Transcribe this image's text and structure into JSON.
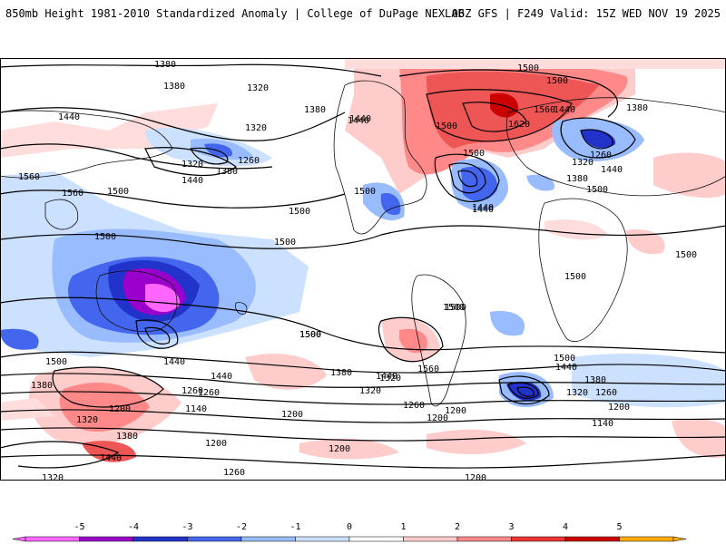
{
  "header": {
    "title_left": "850mb Height 1981-2010 Standardized Anomaly | College of DuPage NEXLAB",
    "title_right": "06Z GFS | F249 Valid: 15Z WED NOV 19 2025"
  },
  "contour_labels": [
    {
      "id": "c1",
      "text": "1380"
    },
    {
      "id": "c2",
      "text": "1380"
    },
    {
      "id": "c3",
      "text": "1320"
    },
    {
      "id": "c4",
      "text": "1440"
    },
    {
      "id": "c5",
      "text": "1320"
    },
    {
      "id": "c6",
      "text": "1380"
    },
    {
      "id": "c7",
      "text": "1440"
    },
    {
      "id": "c8",
      "text": "1260"
    },
    {
      "id": "c9",
      "text": "1320"
    },
    {
      "id": "c10",
      "text": "1380"
    },
    {
      "id": "c11",
      "text": "1440"
    },
    {
      "id": "c12",
      "text": "1560"
    },
    {
      "id": "c13",
      "text": "1560"
    },
    {
      "id": "c14",
      "text": "1500"
    },
    {
      "id": "c15",
      "text": "1500"
    },
    {
      "id": "c16",
      "text": "1500"
    },
    {
      "id": "c17",
      "text": "1440"
    },
    {
      "id": "c18",
      "text": "1500"
    },
    {
      "id": "c19",
      "text": "1500"
    },
    {
      "id": "c20",
      "text": "1500"
    },
    {
      "id": "c21",
      "text": "1500"
    },
    {
      "id": "c22",
      "text": "1440"
    },
    {
      "id": "c23",
      "text": "1500"
    },
    {
      "id": "c24",
      "text": "1620"
    },
    {
      "id": "c25",
      "text": "1560"
    },
    {
      "id": "c26",
      "text": "1500"
    },
    {
      "id": "c27",
      "text": "1440"
    },
    {
      "id": "c28",
      "text": "1440"
    },
    {
      "id": "c29",
      "text": "1380"
    },
    {
      "id": "c30",
      "text": "1320"
    },
    {
      "id": "c31",
      "text": "1260"
    },
    {
      "id": "c32",
      "text": "1440"
    },
    {
      "id": "c33",
      "text": "1380"
    },
    {
      "id": "c34",
      "text": "1500"
    },
    {
      "id": "c35",
      "text": "1500"
    },
    {
      "id": "c36",
      "text": "1500"
    },
    {
      "id": "c37",
      "text": "1500"
    },
    {
      "id": "c38",
      "text": "1500"
    },
    {
      "id": "c39",
      "text": "1500"
    },
    {
      "id": "c40",
      "text": "1440"
    },
    {
      "id": "c41",
      "text": "1440"
    },
    {
      "id": "c42",
      "text": "1380"
    },
    {
      "id": "c43",
      "text": "1320"
    },
    {
      "id": "c44",
      "text": "1260"
    },
    {
      "id": "c45",
      "text": "1140"
    },
    {
      "id": "c46",
      "text": "1200"
    },
    {
      "id": "c47",
      "text": "1260"
    },
    {
      "id": "c48",
      "text": "1320"
    },
    {
      "id": "c49",
      "text": "1380"
    },
    {
      "id": "c50",
      "text": "1440"
    },
    {
      "id": "c51",
      "text": "1200"
    },
    {
      "id": "c52",
      "text": "1260"
    },
    {
      "id": "c53",
      "text": "1320"
    },
    {
      "id": "c54",
      "text": "1500"
    },
    {
      "id": "c55",
      "text": "1380"
    },
    {
      "id": "c56",
      "text": "1320"
    },
    {
      "id": "c57",
      "text": "1440"
    },
    {
      "id": "c58",
      "text": "1500"
    },
    {
      "id": "c59",
      "text": "1560"
    },
    {
      "id": "c60",
      "text": "1260"
    },
    {
      "id": "c61",
      "text": "1200"
    },
    {
      "id": "c62",
      "text": "1200"
    },
    {
      "id": "c63",
      "text": "1200"
    },
    {
      "id": "c64",
      "text": "1500"
    },
    {
      "id": "c65",
      "text": "1440"
    },
    {
      "id": "c66",
      "text": "1380"
    },
    {
      "id": "c67",
      "text": "1320"
    },
    {
      "id": "c68",
      "text": "1260"
    },
    {
      "id": "c69",
      "text": "1200"
    },
    {
      "id": "c70",
      "text": "1140"
    },
    {
      "id": "c71",
      "text": "1200"
    },
    {
      "id": "c72",
      "text": "1200"
    }
  ],
  "colorbar": {
    "ticks": [
      "-5",
      "-4",
      "-3",
      "-2",
      "-1",
      "0",
      "1",
      "2",
      "3",
      "4",
      "5"
    ],
    "colors": [
      "#ff66ff",
      "#9900cc",
      "#2233cc",
      "#4466ee",
      "#99bbff",
      "#cce0ff",
      "#ffffff",
      "#ffcccc",
      "#ff8888",
      "#ee3333",
      "#cc0000",
      "#ffaa00"
    ]
  }
}
